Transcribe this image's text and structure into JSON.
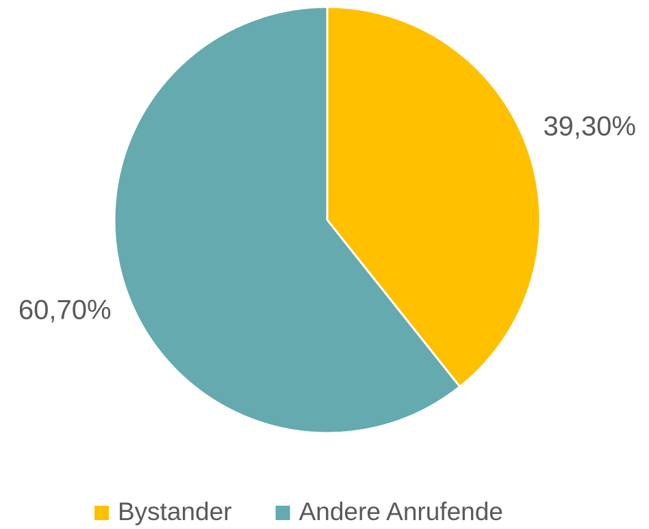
{
  "chart_data": {
    "type": "pie",
    "categories": [
      "Bystander",
      "Andere Anrufende"
    ],
    "values": [
      39.3,
      60.7
    ],
    "value_labels": [
      "39,30%",
      "60,70%"
    ],
    "colors": [
      "#FFC000",
      "#64AAAF"
    ],
    "legend": "bottom"
  }
}
